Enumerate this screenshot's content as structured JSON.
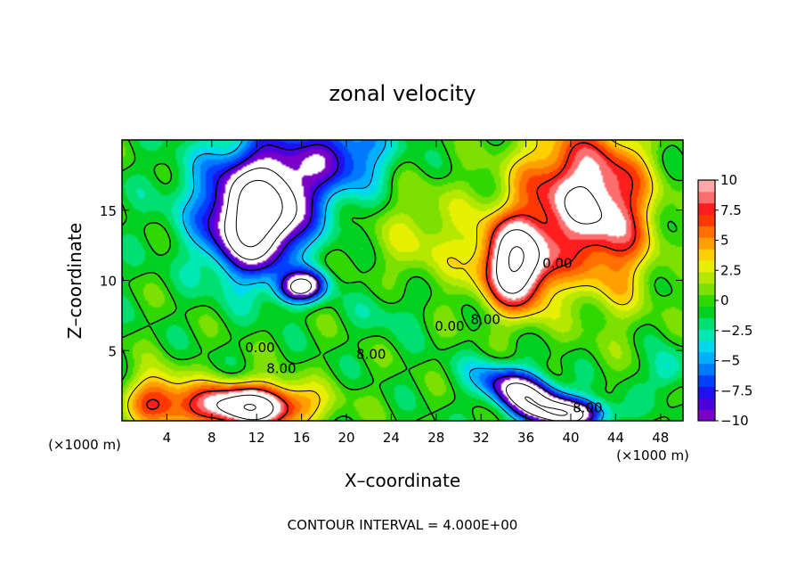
{
  "chart_data": {
    "type": "heatmap",
    "title": "zonal velocity",
    "xlabel": "X–coordinate",
    "ylabel": "Z–coordinate",
    "x_unit": "(×1000 m)",
    "xlim": [
      0,
      50
    ],
    "ylim": [
      0,
      20
    ],
    "x_ticks": [
      4,
      8,
      12,
      16,
      20,
      24,
      28,
      32,
      36,
      40,
      44,
      48
    ],
    "y_ticks": [
      5,
      10,
      15
    ],
    "colorbar": {
      "levels": [
        -10,
        -9,
        -8,
        -7,
        -6,
        -5,
        -4,
        -3,
        -2,
        -1,
        0,
        1,
        2,
        3,
        4,
        5,
        6,
        7,
        8,
        9,
        10
      ],
      "colors": [
        "#7a00c8",
        "#4b00dc",
        "#1e10f0",
        "#0040ff",
        "#0078ff",
        "#00b0ff",
        "#00d8f0",
        "#00e8b4",
        "#00e070",
        "#00d020",
        "#30d800",
        "#7ce000",
        "#b4e800",
        "#e6f000",
        "#ffd000",
        "#ffa000",
        "#ff7000",
        "#ff3800",
        "#ff1e1e",
        "#ff6e6e",
        "#ffa8a8"
      ],
      "tick_labels": [
        "10",
        "7.5",
        "5",
        "2.5",
        "0",
        "−2.5",
        "−5",
        "−7.5",
        "−10"
      ],
      "tick_values": [
        10,
        7.5,
        5,
        2.5,
        0,
        -2.5,
        -5,
        -7.5,
        -10
      ]
    },
    "contour_labels": [
      {
        "text": "8.00",
        "x": 14.2,
        "y": 3.4
      },
      {
        "text": "0.00",
        "x": 29.2,
        "y": 6.4
      },
      {
        "text": "0.00",
        "x": 38.8,
        "y": 10.9
      },
      {
        "text": "8.00",
        "x": 32.4,
        "y": 6.9
      },
      {
        "text": "0.00",
        "x": 12.3,
        "y": 4.9
      },
      {
        "text": "8.00",
        "x": 22.2,
        "y": 4.4
      },
      {
        "text": "8.00",
        "x": 41.5,
        "y": 0.6
      }
    ],
    "features": [
      {
        "x": 12.0,
        "y": 14.0,
        "sx": 4.0,
        "sy": 3.5,
        "amp": -15,
        "rot": 0.55
      },
      {
        "x": 16.0,
        "y": 9.5,
        "sx": 2.2,
        "sy": 1.1,
        "amp": -12,
        "rot": 0.1
      },
      {
        "x": 13.0,
        "y": 17.0,
        "sx": 7.0,
        "sy": 4.0,
        "amp": -8,
        "rot": 0.2
      },
      {
        "x": 35.0,
        "y": 11.0,
        "sx": 3.0,
        "sy": 3.2,
        "amp": 15,
        "rot": 0.7
      },
      {
        "x": 40.0,
        "y": 16.0,
        "sx": 5.0,
        "sy": 5.0,
        "amp": 10,
        "rot": 0.0
      },
      {
        "x": 44.0,
        "y": 14.0,
        "sx": 3.5,
        "sy": 6.0,
        "amp": 6,
        "rot": 0.0
      },
      {
        "x": 11.0,
        "y": 1.0,
        "sx": 5.5,
        "sy": 1.6,
        "amp": 15,
        "rot": 0.0
      },
      {
        "x": 3.0,
        "y": 1.5,
        "sx": 2.5,
        "sy": 2.0,
        "amp": 7,
        "rot": 0.0
      },
      {
        "x": 36.0,
        "y": 1.8,
        "sx": 4.0,
        "sy": 1.5,
        "amp": -14,
        "rot": -0.3
      },
      {
        "x": 40.0,
        "y": 0.5,
        "sx": 3.5,
        "sy": 1.0,
        "amp": -10,
        "rot": 0.0
      },
      {
        "x": 27.0,
        "y": 13.0,
        "sx": 5.0,
        "sy": 4.0,
        "amp": 3,
        "rot": 0.0
      },
      {
        "x": 20.0,
        "y": 19.0,
        "sx": 4.0,
        "sy": 2.5,
        "amp": -5,
        "rot": 0.0
      },
      {
        "x": 48.5,
        "y": 3.5,
        "sx": 1.5,
        "sy": 1.5,
        "amp": -4,
        "rot": 0.0
      },
      {
        "x": 24.0,
        "y": 8.0,
        "sx": 3.0,
        "sy": 2.0,
        "amp": -2,
        "rot": 0.0
      }
    ],
    "note": "CONTOUR INTERVAL = 4.000E+00"
  }
}
